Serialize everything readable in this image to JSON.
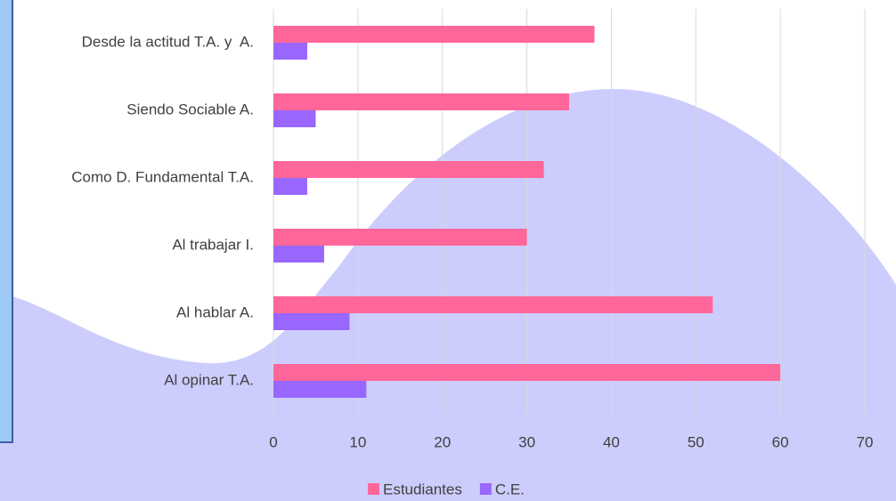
{
  "chart_data": {
    "type": "bar",
    "orientation": "horizontal",
    "categories": [
      "Desde la actitud T.A. y  A.",
      "Siendo Sociable A.",
      "Como D. Fundamental T.A.",
      "Al trabajar I.",
      "Al hablar A.",
      "Al opinar T.A."
    ],
    "series": [
      {
        "name": "Estudiantes",
        "color": "#ff6699",
        "values": [
          38,
          35,
          32,
          30,
          52,
          60
        ]
      },
      {
        "name": "C.E.",
        "color": "#9966ff",
        "values": [
          4,
          5,
          4,
          6,
          9,
          11
        ]
      }
    ],
    "xlim": [
      0,
      70
    ],
    "xticks": [
      0,
      10,
      20,
      30,
      40,
      50,
      60,
      70
    ],
    "grid": true,
    "legend": "bottom"
  }
}
